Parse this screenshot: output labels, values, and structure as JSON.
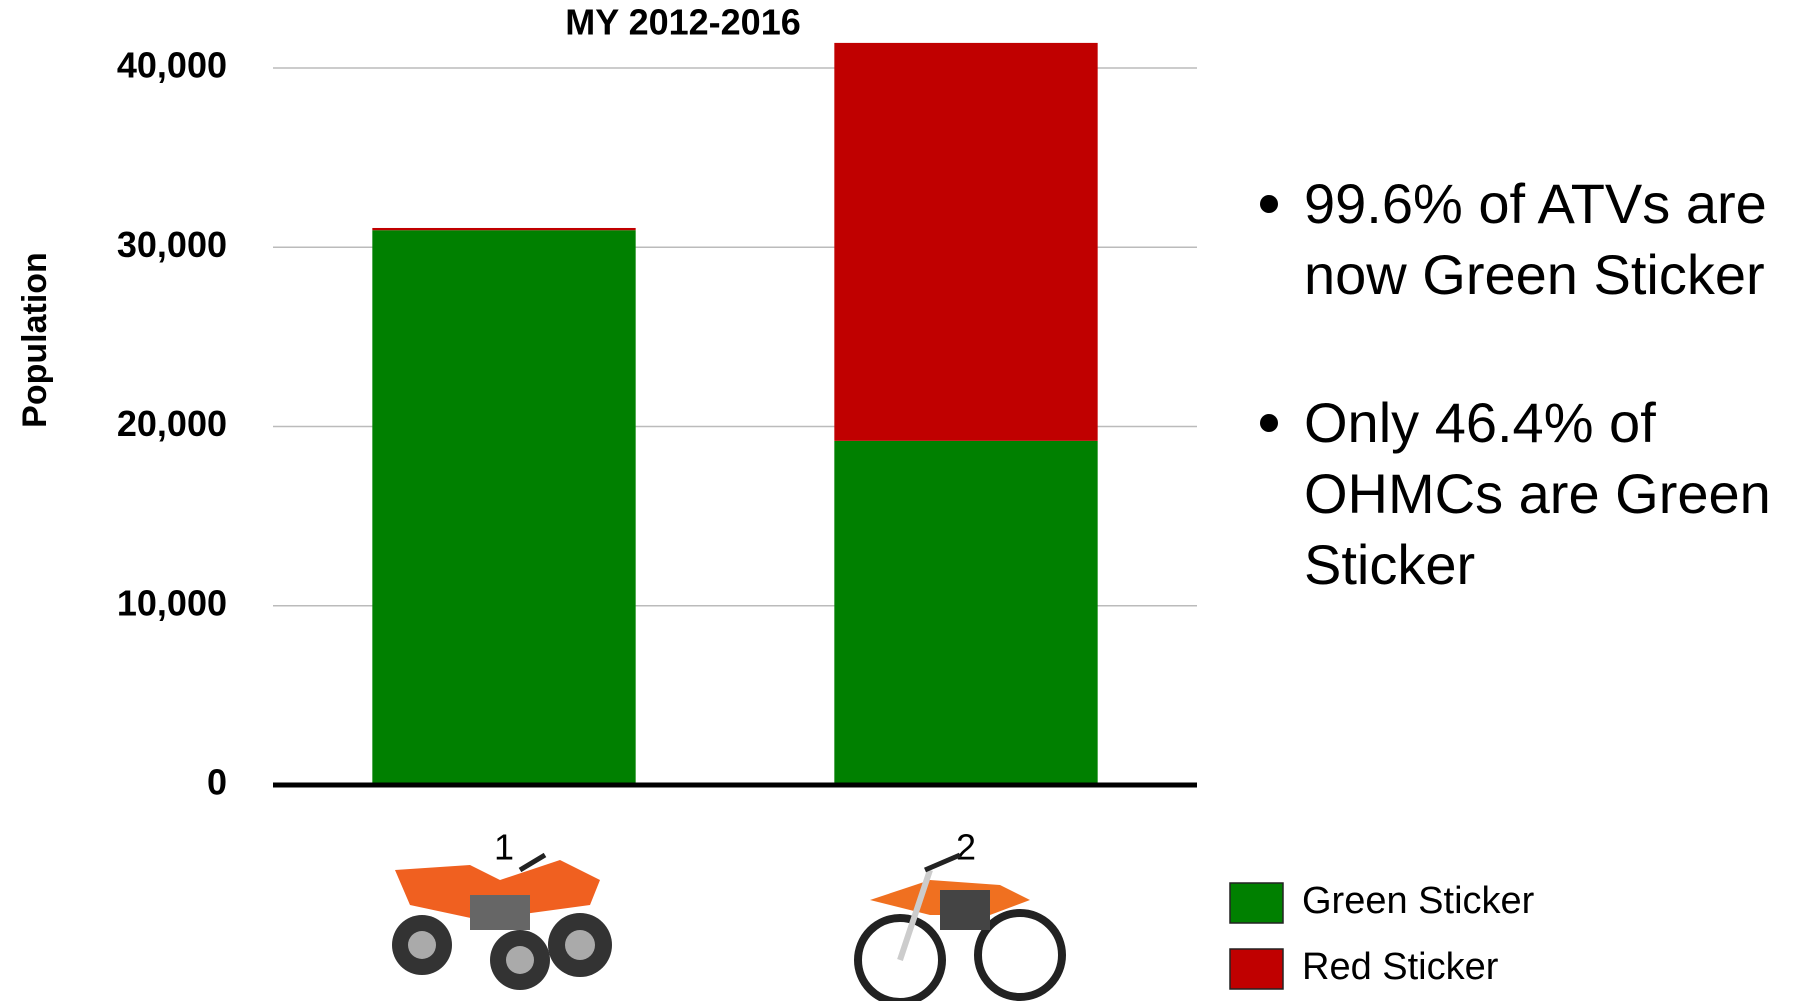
{
  "chart_data": {
    "type": "stacked-bar",
    "title": "MY 2012-2016",
    "y_label": "Population",
    "categories": [
      "1",
      "2"
    ],
    "series": [
      {
        "name": "Green Sticker",
        "color": "#008000",
        "values": [
          30950,
          19200
        ]
      },
      {
        "name": "Red Sticker",
        "color": "#c00000",
        "values": [
          125,
          22200
        ]
      }
    ],
    "ylim": [
      0,
      40000
    ],
    "yticks": [
      0,
      {
        "value": 10000,
        "label": "10,000"
      },
      {
        "value": 20000,
        "label": "20,000"
      },
      {
        "value": 30000,
        "label": "30,000"
      },
      {
        "value": 40000,
        "label": "40,000"
      }
    ],
    "grid": true,
    "annotations": [
      [
        "99.6% of ATVs are",
        "now Green Sticker"
      ],
      [
        "Only 46.4% of",
        "OHMCs are Green",
        "Sticker"
      ]
    ]
  }
}
